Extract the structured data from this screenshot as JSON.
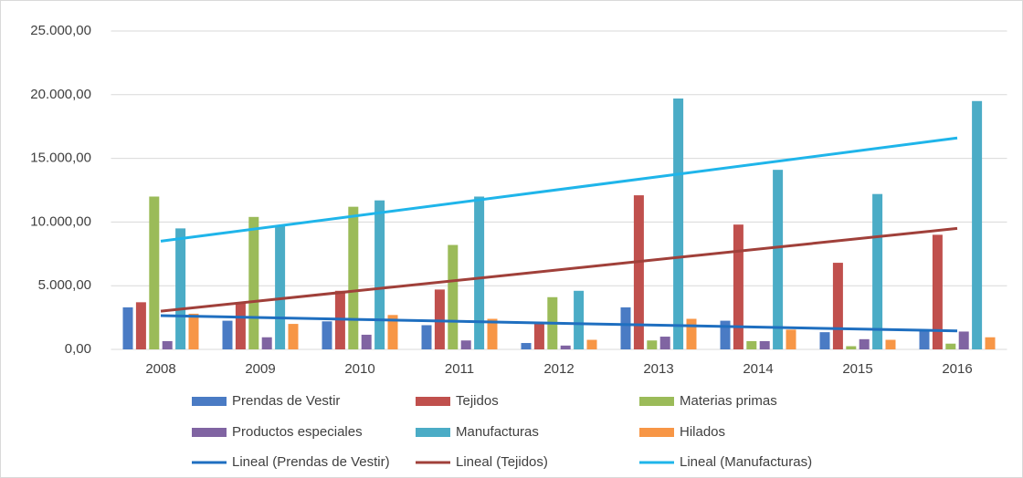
{
  "chart_data": {
    "type": "bar",
    "categories": [
      "2008",
      "2009",
      "2010",
      "2011",
      "2012",
      "2013",
      "2014",
      "2015",
      "2016"
    ],
    "series": [
      {
        "name": "Prendas de Vestir",
        "color": "#4a7bc4",
        "values": [
          3300,
          2250,
          2200,
          1900,
          500,
          3300,
          2250,
          1350,
          1500
        ]
      },
      {
        "name": "Tejidos",
        "color": "#c0504d",
        "values": [
          3700,
          3700,
          4600,
          4700,
          2100,
          12100,
          9800,
          6800,
          9000
        ]
      },
      {
        "name": "Materias primas",
        "color": "#9bbb59",
        "values": [
          12000,
          10400,
          11200,
          8200,
          4100,
          700,
          650,
          250,
          450
        ]
      },
      {
        "name": "Productos especiales",
        "color": "#8064a2",
        "values": [
          650,
          950,
          1150,
          700,
          300,
          1000,
          650,
          800,
          1400
        ]
      },
      {
        "name": "Manufacturas",
        "color": "#4bacc6",
        "values": [
          9500,
          9700,
          11700,
          12000,
          4600,
          19700,
          14100,
          12200,
          19500
        ]
      },
      {
        "name": "Hilados",
        "color": "#f79646",
        "values": [
          2800,
          2000,
          2700,
          2400,
          750,
          2400,
          1550,
          750,
          950
        ]
      }
    ],
    "trendlines": [
      {
        "name": "Lineal (Prendas de Vestir)",
        "color": "#1f6fc0",
        "values": [
          2650,
          1450
        ]
      },
      {
        "name": "Lineal (Tejidos)",
        "color": "#a0403a",
        "values": [
          3000,
          9500
        ]
      },
      {
        "name": "Lineal (Manufacturas)",
        "color": "#1fb5ea",
        "values": [
          8500,
          16600
        ]
      }
    ],
    "ylim": [
      0,
      25000
    ],
    "yticks": [
      {
        "value": 0,
        "label": "0,00"
      },
      {
        "value": 5000,
        "label": "5.000,00"
      },
      {
        "value": 10000,
        "label": "10.000,00"
      },
      {
        "value": 15000,
        "label": "15.000,00"
      },
      {
        "value": 20000,
        "label": "20.000,00"
      },
      {
        "value": 25000,
        "label": "25.000,00"
      }
    ],
    "grid": true
  }
}
